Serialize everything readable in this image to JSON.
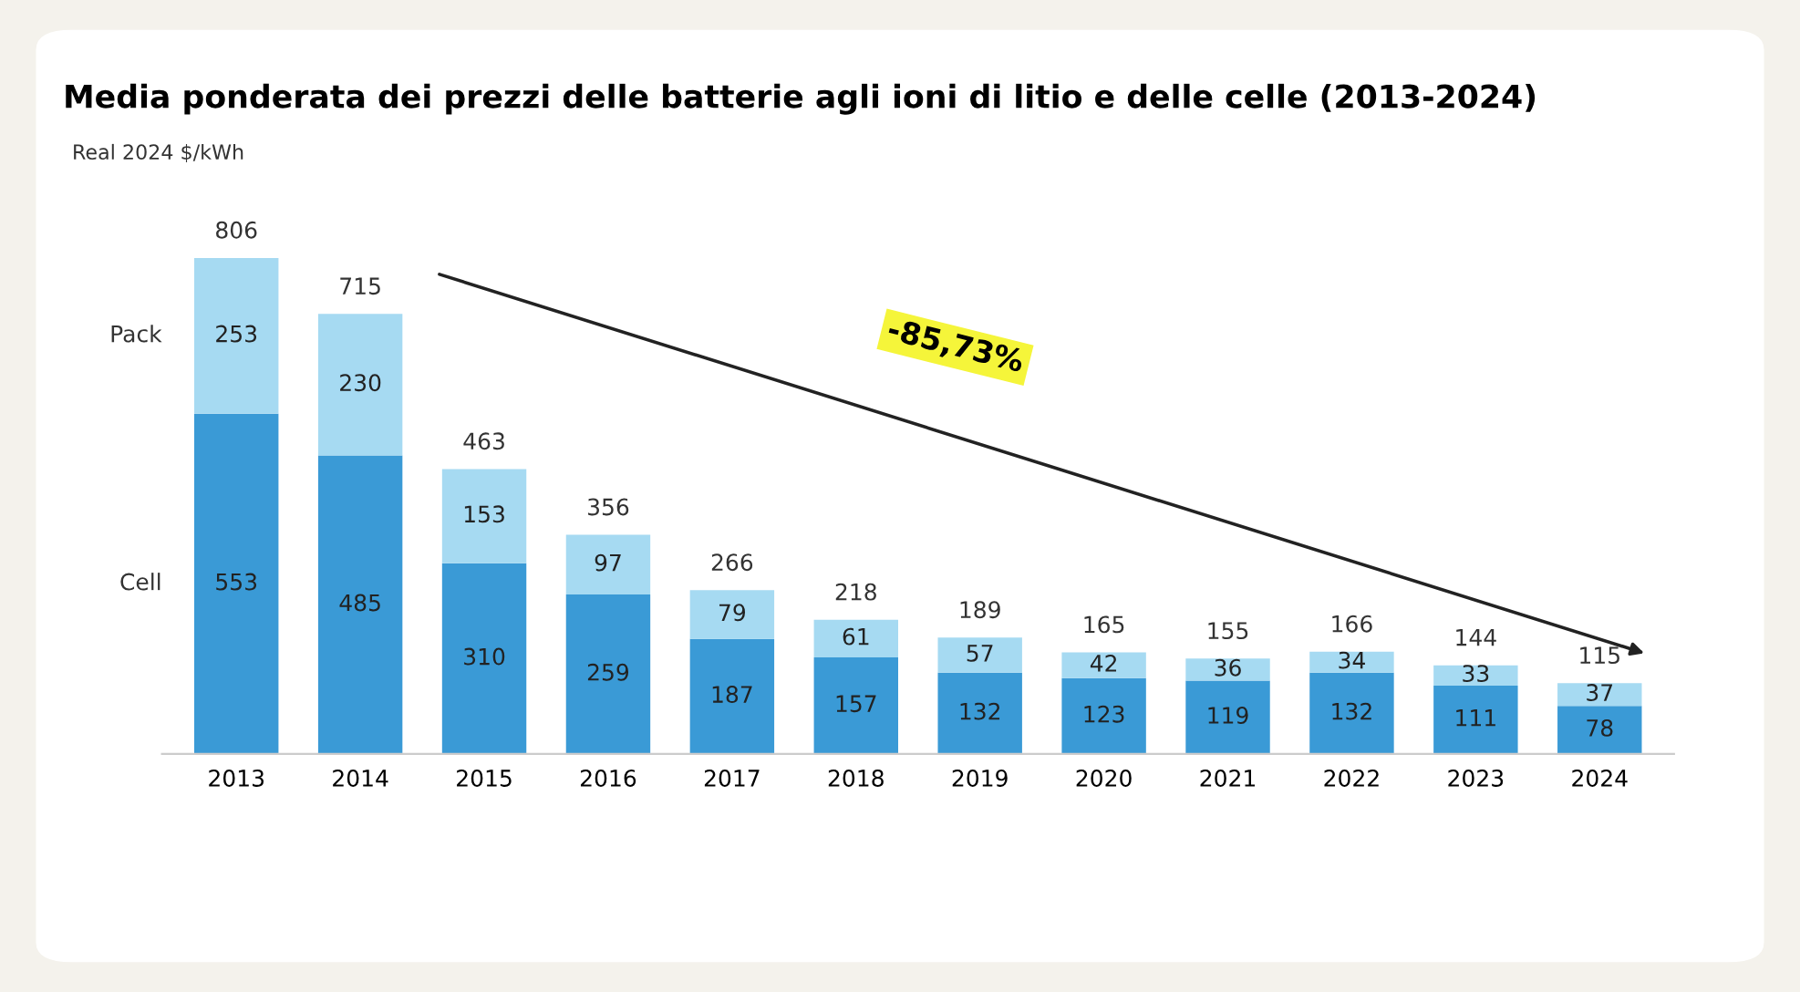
{
  "chart_data": {
    "type": "bar",
    "title": "Media ponderata dei prezzi delle batterie agli ioni di litio e delle celle (2013-2024)",
    "ylabel": "Real 2024 $/kWh",
    "categories": [
      "2013",
      "2014",
      "2015",
      "2016",
      "2017",
      "2018",
      "2019",
      "2020",
      "2021",
      "2022",
      "2023",
      "2024"
    ],
    "stacked": true,
    "series": [
      {
        "name": "Cell",
        "color": "#3a9ad6",
        "values": [
          553,
          485,
          310,
          259,
          187,
          157,
          132,
          123,
          119,
          132,
          111,
          78
        ]
      },
      {
        "name": "Pack",
        "color": "#a6daf2",
        "values": [
          253,
          230,
          153,
          97,
          79,
          61,
          57,
          42,
          36,
          34,
          33,
          37
        ]
      }
    ],
    "data_labels": true,
    "totals": [
      "806",
      "715",
      "463",
      "356",
      "266",
      "218",
      "189",
      "165",
      "155",
      "166",
      "144",
      "115"
    ],
    "annotations": [
      "-85,73%"
    ]
  }
}
